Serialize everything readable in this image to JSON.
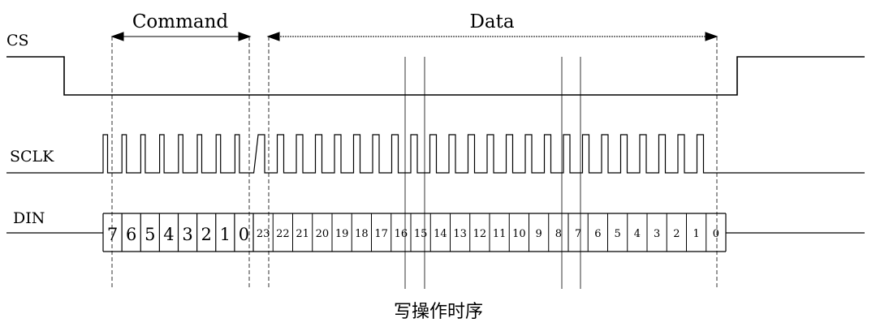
{
  "signals": {
    "cs": "CS",
    "sclk": "SCLK",
    "din": "DIN"
  },
  "sections": {
    "command": "Command",
    "data": "Data"
  },
  "command_bits": [
    "7",
    "6",
    "5",
    "4",
    "3",
    "2",
    "1",
    "0"
  ],
  "data_bits": [
    "23",
    "22",
    "21",
    "20",
    "19",
    "18",
    "17",
    "16",
    "15",
    "14",
    "13",
    "12",
    "11",
    "10",
    "9",
    "8",
    "7",
    "6",
    "5",
    "4",
    "3",
    "2",
    "1",
    "0"
  ],
  "caption": "写操作时序"
}
